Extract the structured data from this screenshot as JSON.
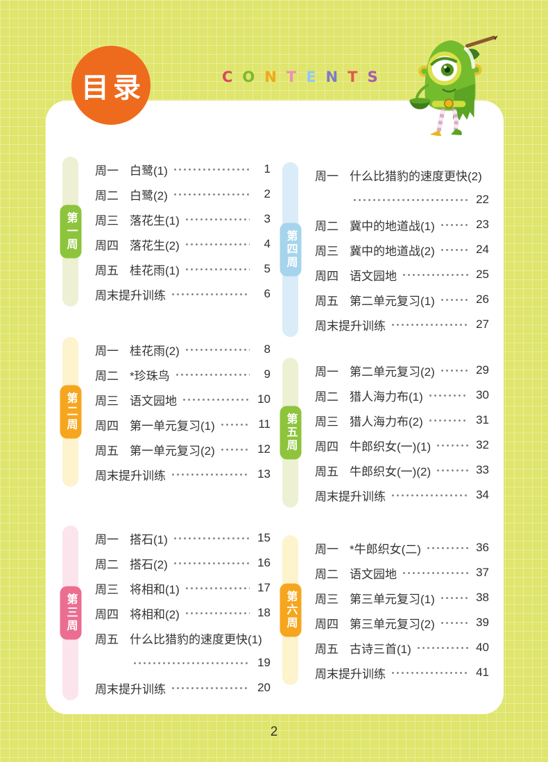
{
  "header": {
    "title": "目录",
    "contents_letters": [
      {
        "ch": "C",
        "color": "#d9485f"
      },
      {
        "ch": "O",
        "color": "#7cb830"
      },
      {
        "ch": "N",
        "color": "#f0a818"
      },
      {
        "ch": "T",
        "color": "#ef8fb6"
      },
      {
        "ch": "E",
        "color": "#93c8ee"
      },
      {
        "ch": "N",
        "color": "#7f7bc4"
      },
      {
        "ch": "T",
        "color": "#e2574e"
      },
      {
        "ch": "S",
        "color": "#a55cb0"
      }
    ],
    "mascot_icon": "green-one-eyed-monster-holding-pencil"
  },
  "footer": {
    "page_number": "2"
  },
  "colors": {
    "background": "#dfe56d",
    "card": "#ffffff",
    "title_badge": "#ee6b1e"
  },
  "columns": [
    {
      "weeks": [
        {
          "label": "第一周",
          "tab_color": "#8dc43c",
          "strip_color": "#edf0d3",
          "entries": [
            {
              "day": "周一",
              "title": "白鹭(1)",
              "page": "1"
            },
            {
              "day": "周二",
              "title": "白鹭(2)",
              "page": "2"
            },
            {
              "day": "周三",
              "title": "落花生(1)",
              "page": "3"
            },
            {
              "day": "周四",
              "title": "落花生(2)",
              "page": "4"
            },
            {
              "day": "周五",
              "title": "桂花雨(1)",
              "page": "5"
            },
            {
              "day": "",
              "title": "周末提升训练",
              "page": "6"
            }
          ]
        },
        {
          "label": "第二周",
          "tab_color": "#f6a61e",
          "strip_color": "#fdf3cd",
          "entries": [
            {
              "day": "周一",
              "title": "桂花雨(2)",
              "page": "8"
            },
            {
              "day": "周二",
              "title": "*珍珠鸟",
              "page": "9"
            },
            {
              "day": "周三",
              "title": "语文园地",
              "page": "10"
            },
            {
              "day": "周四",
              "title": "第一单元复习(1)",
              "page": "11"
            },
            {
              "day": "周五",
              "title": "第一单元复习(2)",
              "page": "12"
            },
            {
              "day": "",
              "title": "周末提升训练",
              "page": "13"
            }
          ]
        },
        {
          "label": "第三周",
          "tab_color": "#eb6e91",
          "strip_color": "#fce4ec",
          "entries": [
            {
              "day": "周一",
              "title": "搭石(1)",
              "page": "15"
            },
            {
              "day": "周二",
              "title": "搭石(2)",
              "page": "16"
            },
            {
              "day": "周三",
              "title": "将相和(1)",
              "page": "17"
            },
            {
              "day": "周四",
              "title": "将相和(2)",
              "page": "18"
            },
            {
              "day": "周五",
              "title": "什么比猎豹的速度更快(1)",
              "page": "19",
              "wrap": true
            },
            {
              "day": "",
              "title": "周末提升训练",
              "page": "20"
            }
          ]
        }
      ]
    },
    {
      "weeks": [
        {
          "label": "第四周",
          "tab_color": "#a6d4ec",
          "strip_color": "#d9ecf8",
          "entries": [
            {
              "day": "周一",
              "title": "什么比猎豹的速度更快(2)",
              "page": "22",
              "wrap": true
            },
            {
              "day": "周二",
              "title": "冀中的地道战(1)",
              "page": "23"
            },
            {
              "day": "周三",
              "title": "冀中的地道战(2)",
              "page": "24"
            },
            {
              "day": "周四",
              "title": "语文园地",
              "page": "25"
            },
            {
              "day": "周五",
              "title": "第二单元复习(1)",
              "page": "26"
            },
            {
              "day": "",
              "title": "周末提升训练",
              "page": "27"
            }
          ]
        },
        {
          "label": "第五周",
          "tab_color": "#8dc43c",
          "strip_color": "#edf0d3",
          "entries": [
            {
              "day": "周一",
              "title": "第二单元复习(2)",
              "page": "29"
            },
            {
              "day": "周二",
              "title": "猎人海力布(1)",
              "page": "30"
            },
            {
              "day": "周三",
              "title": "猎人海力布(2)",
              "page": "31"
            },
            {
              "day": "周四",
              "title": "牛郎织女(一)(1)",
              "page": "32"
            },
            {
              "day": "周五",
              "title": "牛郎织女(一)(2)",
              "page": "33"
            },
            {
              "day": "",
              "title": "周末提升训练",
              "page": "34"
            }
          ]
        },
        {
          "label": "第六周",
          "tab_color": "#f6a61e",
          "strip_color": "#fdf3cd",
          "entries": [
            {
              "day": "周一",
              "title": "*牛郎织女(二)",
              "page": "36"
            },
            {
              "day": "周二",
              "title": "语文园地",
              "page": "37"
            },
            {
              "day": "周三",
              "title": "第三单元复习(1)",
              "page": "38"
            },
            {
              "day": "周四",
              "title": "第三单元复习(2)",
              "page": "39"
            },
            {
              "day": "周五",
              "title": "古诗三首(1)",
              "page": "40"
            },
            {
              "day": "",
              "title": "周末提升训练",
              "page": "41"
            }
          ]
        }
      ]
    }
  ]
}
